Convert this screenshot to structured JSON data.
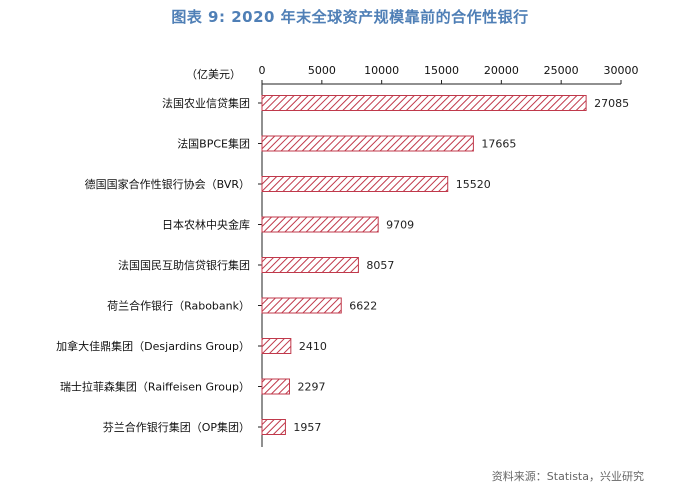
{
  "title": "图表 9:  2020 年末全球资产规模靠前的合作性银行",
  "source": "资料来源：Statista，兴业研究",
  "colors": {
    "title": "#4f7fb6",
    "bar_stroke": "#c0394b",
    "bar_hatch": "#c0394b"
  },
  "chart_data": {
    "type": "bar",
    "orientation": "horizontal",
    "unit_label": "（亿美元）",
    "xlim": [
      0,
      30000
    ],
    "ticks": [
      0,
      5000,
      10000,
      15000,
      20000,
      25000,
      30000
    ],
    "tick_labels": [
      "0",
      "5000",
      "10000",
      "15000",
      "20000",
      "25000",
      "30000"
    ],
    "axis_position": "top",
    "grid": false,
    "categories": [
      "法国农业信贷集团",
      "法国BPCE集团",
      "德国国家合作性银行协会（BVR）",
      "日本农林中央金库",
      "法国国民互助信贷银行集团",
      "荷兰合作银行（Rabobank）",
      "加拿大佳鼎集团（Desjardins Group）",
      "瑞士拉菲森集团（Raiffeisen Group）",
      "芬兰合作银行集团（OP集团）"
    ],
    "values": [
      27085,
      17665,
      15520,
      9709,
      8057,
      6622,
      2410,
      2297,
      1957
    ],
    "value_labels": [
      "27085",
      "17665",
      "15520",
      "9709",
      "8057",
      "6622",
      "2410",
      "2297",
      "1957"
    ]
  }
}
